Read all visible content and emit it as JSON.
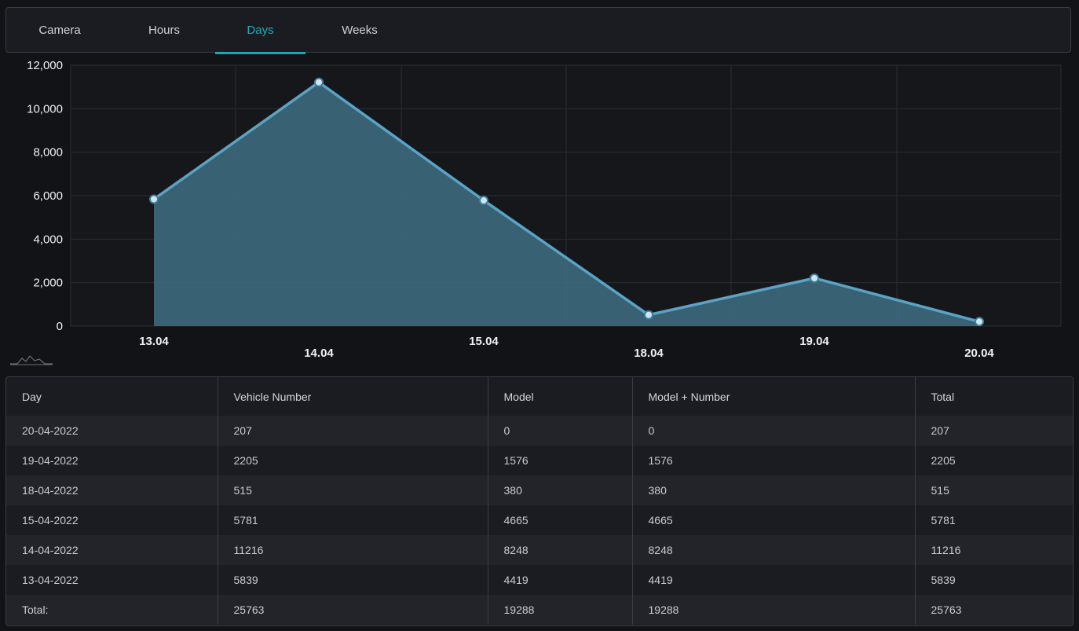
{
  "tabs": [
    {
      "label": "Camera",
      "active": false
    },
    {
      "label": "Hours",
      "active": false
    },
    {
      "label": "Days",
      "active": true
    },
    {
      "label": "Weeks",
      "active": false
    }
  ],
  "colors": {
    "accent": "#1fa6b5",
    "line": "#5ba3c4",
    "area": "#3e6e82",
    "background": "#121317",
    "panel": "#1b1c21",
    "border": "#3a3d45"
  },
  "chart_data": {
    "type": "area",
    "categories": [
      "13.04",
      "14.04",
      "15.04",
      "18.04",
      "19.04",
      "20.04"
    ],
    "values": [
      5839,
      11216,
      5781,
      515,
      2205,
      207
    ],
    "yticks": [
      "0",
      "2,000",
      "4,000",
      "6,000",
      "8,000",
      "10,000",
      "12,000"
    ],
    "ylim": [
      0,
      12000
    ],
    "grid": true,
    "title": "",
    "xlabel": "",
    "ylabel": ""
  },
  "table": {
    "headers": [
      "Day",
      "Vehicle Number",
      "Model",
      "Model + Number",
      "Total"
    ],
    "rows": [
      [
        "20-04-2022",
        "207",
        "0",
        "0",
        "207"
      ],
      [
        "19-04-2022",
        "2205",
        "1576",
        "1576",
        "2205"
      ],
      [
        "18-04-2022",
        "515",
        "380",
        "380",
        "515"
      ],
      [
        "15-04-2022",
        "5781",
        "4665",
        "4665",
        "5781"
      ],
      [
        "14-04-2022",
        "11216",
        "8248",
        "8248",
        "11216"
      ],
      [
        "13-04-2022",
        "5839",
        "4419",
        "4419",
        "5839"
      ],
      [
        "Total:",
        "25763",
        "19288",
        "19288",
        "25763"
      ]
    ]
  }
}
